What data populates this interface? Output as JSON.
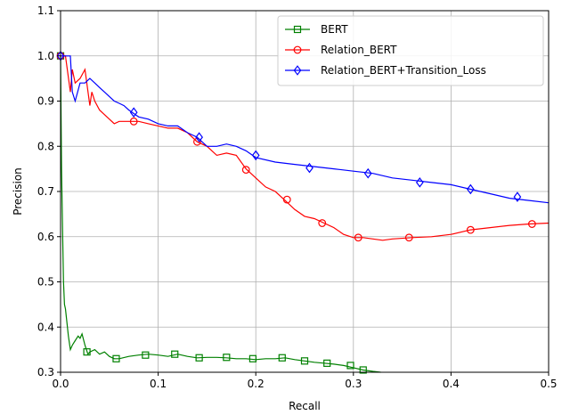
{
  "chart_data": {
    "type": "line",
    "xlabel": "Recall",
    "ylabel": "Precision",
    "xlim": [
      0.0,
      0.5
    ],
    "ylim": [
      0.3,
      1.1
    ],
    "xticks": [
      "0.0",
      "0.1",
      "0.2",
      "0.3",
      "0.4",
      "0.5"
    ],
    "yticks": [
      "0.3",
      "0.4",
      "0.5",
      "0.6",
      "0.7",
      "0.8",
      "0.9",
      "1.0",
      "1.1"
    ],
    "grid": true,
    "legend_position": "top-right",
    "series": [
      {
        "name": "BERT",
        "color": "#008000",
        "marker": "square",
        "x": [
          0.0,
          0.001,
          0.002,
          0.003,
          0.004,
          0.005,
          0.006,
          0.008,
          0.01,
          0.012,
          0.015,
          0.018,
          0.02,
          0.022,
          0.025,
          0.028,
          0.03,
          0.035,
          0.04,
          0.045,
          0.05,
          0.055,
          0.06,
          0.07,
          0.08,
          0.09,
          0.1,
          0.11,
          0.12,
          0.13,
          0.14,
          0.15,
          0.16,
          0.17,
          0.18,
          0.19,
          0.2,
          0.21,
          0.22,
          0.23,
          0.24,
          0.25,
          0.26,
          0.27,
          0.28,
          0.29,
          0.3,
          0.31,
          0.32,
          0.328
        ],
        "y": [
          1.0,
          0.75,
          0.62,
          0.5,
          0.45,
          0.44,
          0.42,
          0.38,
          0.35,
          0.36,
          0.37,
          0.38,
          0.375,
          0.385,
          0.36,
          0.34,
          0.345,
          0.35,
          0.34,
          0.345,
          0.335,
          0.33,
          0.33,
          0.335,
          0.338,
          0.34,
          0.338,
          0.335,
          0.34,
          0.335,
          0.332,
          0.333,
          0.333,
          0.332,
          0.33,
          0.33,
          0.328,
          0.33,
          0.33,
          0.332,
          0.328,
          0.325,
          0.322,
          0.32,
          0.318,
          0.315,
          0.31,
          0.305,
          0.302,
          0.3
        ],
        "markers_x": [
          0.0,
          0.027,
          0.057,
          0.087,
          0.117,
          0.142,
          0.17,
          0.197,
          0.227,
          0.25,
          0.273,
          0.297,
          0.31
        ],
        "markers_y": [
          1.0,
          0.345,
          0.33,
          0.338,
          0.34,
          0.332,
          0.333,
          0.33,
          0.332,
          0.325,
          0.32,
          0.315,
          0.305
        ]
      },
      {
        "name": "Relation_BERT",
        "color": "#ff0000",
        "marker": "circle",
        "x": [
          0.0,
          0.005,
          0.01,
          0.012,
          0.015,
          0.02,
          0.025,
          0.03,
          0.032,
          0.035,
          0.04,
          0.045,
          0.05,
          0.055,
          0.06,
          0.07,
          0.08,
          0.09,
          0.1,
          0.11,
          0.12,
          0.13,
          0.14,
          0.15,
          0.16,
          0.17,
          0.18,
          0.19,
          0.2,
          0.21,
          0.22,
          0.23,
          0.24,
          0.25,
          0.26,
          0.27,
          0.28,
          0.29,
          0.3,
          0.31,
          0.32,
          0.33,
          0.34,
          0.36,
          0.38,
          0.4,
          0.42,
          0.44,
          0.46,
          0.48,
          0.5
        ],
        "y": [
          1.0,
          1.0,
          0.92,
          0.97,
          0.94,
          0.95,
          0.97,
          0.89,
          0.92,
          0.9,
          0.88,
          0.87,
          0.86,
          0.85,
          0.855,
          0.855,
          0.855,
          0.85,
          0.845,
          0.84,
          0.84,
          0.83,
          0.81,
          0.8,
          0.78,
          0.785,
          0.78,
          0.75,
          0.73,
          0.71,
          0.7,
          0.68,
          0.66,
          0.645,
          0.64,
          0.63,
          0.62,
          0.605,
          0.598,
          0.598,
          0.595,
          0.592,
          0.595,
          0.598,
          0.6,
          0.605,
          0.615,
          0.62,
          0.625,
          0.628,
          0.63
        ],
        "markers_x": [
          0.0,
          0.075,
          0.14,
          0.19,
          0.232,
          0.268,
          0.305,
          0.357,
          0.42,
          0.483
        ],
        "markers_y": [
          1.0,
          0.855,
          0.81,
          0.748,
          0.682,
          0.63,
          0.598,
          0.598,
          0.615,
          0.628
        ]
      },
      {
        "name": "Relation_BERT+Transition_Loss",
        "color": "#0000ff",
        "marker": "diamond",
        "x": [
          0.0,
          0.005,
          0.01,
          0.012,
          0.015,
          0.02,
          0.025,
          0.03,
          0.035,
          0.04,
          0.045,
          0.05,
          0.055,
          0.06,
          0.065,
          0.07,
          0.08,
          0.09,
          0.1,
          0.11,
          0.12,
          0.13,
          0.14,
          0.15,
          0.16,
          0.17,
          0.18,
          0.19,
          0.2,
          0.22,
          0.24,
          0.26,
          0.28,
          0.3,
          0.32,
          0.34,
          0.36,
          0.38,
          0.4,
          0.42,
          0.44,
          0.46,
          0.48,
          0.5
        ],
        "y": [
          1.0,
          1.0,
          1.0,
          0.92,
          0.9,
          0.94,
          0.94,
          0.95,
          0.94,
          0.93,
          0.92,
          0.91,
          0.9,
          0.895,
          0.89,
          0.88,
          0.865,
          0.86,
          0.85,
          0.845,
          0.845,
          0.83,
          0.82,
          0.8,
          0.8,
          0.805,
          0.8,
          0.79,
          0.775,
          0.765,
          0.76,
          0.755,
          0.75,
          0.745,
          0.74,
          0.73,
          0.725,
          0.72,
          0.715,
          0.705,
          0.695,
          0.685,
          0.68,
          0.675
        ],
        "markers_x": [
          0.0,
          0.075,
          0.142,
          0.2,
          0.255,
          0.315,
          0.368,
          0.42,
          0.468
        ],
        "markers_y": [
          1.0,
          0.875,
          0.82,
          0.78,
          0.752,
          0.74,
          0.72,
          0.705,
          0.688
        ]
      }
    ]
  }
}
